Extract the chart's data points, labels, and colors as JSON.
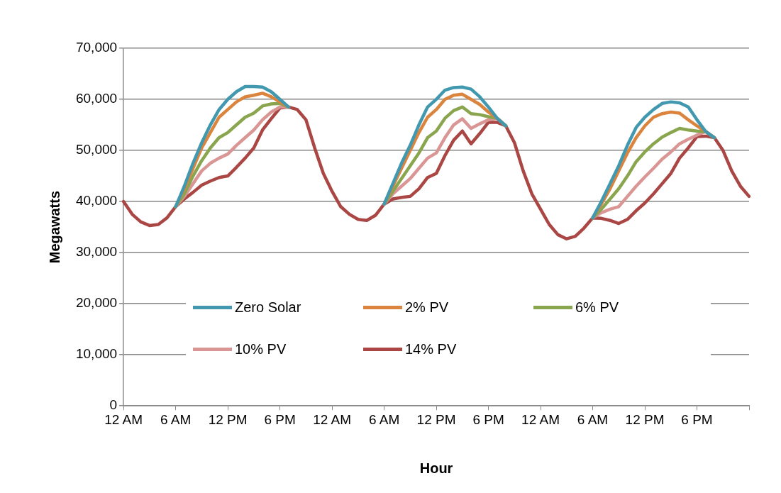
{
  "chart_data": {
    "type": "line",
    "xlabel": "Hour",
    "ylabel": "Megawatts",
    "categories": [
      "12 AM",
      null,
      null,
      null,
      null,
      null,
      "6 AM",
      null,
      null,
      null,
      null,
      null,
      "12 PM",
      null,
      null,
      null,
      null,
      null,
      "6 PM",
      null,
      null,
      null,
      null,
      null,
      "12 AM",
      null,
      null,
      null,
      null,
      null,
      "6 AM",
      null,
      null,
      null,
      null,
      null,
      "12 PM",
      null,
      null,
      null,
      null,
      null,
      "6 PM",
      null,
      null,
      null,
      null,
      null,
      "12 AM",
      null,
      null,
      null,
      null,
      null,
      "6 AM",
      null,
      null,
      null,
      null,
      null,
      "12 PM",
      null,
      null,
      null,
      null,
      null,
      "6 PM",
      null,
      null,
      null,
      null,
      null,
      null
    ],
    "ylim": [
      0,
      70000
    ],
    "yticks": [
      {
        "value": 0,
        "label": "0"
      },
      {
        "value": 10000,
        "label": "10,000"
      },
      {
        "value": 20000,
        "label": "20,000"
      },
      {
        "value": 30000,
        "label": "30,000"
      },
      {
        "value": 40000,
        "label": "40,000"
      },
      {
        "value": 50000,
        "label": "50,000"
      },
      {
        "value": 60000,
        "label": "60,000"
      },
      {
        "value": 70000,
        "label": "70,000"
      }
    ],
    "grid": "y",
    "legend": "bottom",
    "marker": "none",
    "line_style": "solid",
    "series": [
      {
        "name": "Zero Solar",
        "color": "#4198af",
        "values": [
          null,
          null,
          null,
          null,
          null,
          null,
          39000,
          43000,
          47500,
          51500,
          55000,
          58000,
          60000,
          61500,
          62500,
          62500,
          62400,
          61500,
          60000,
          58500,
          null,
          null,
          null,
          null,
          null,
          null,
          null,
          null,
          null,
          null,
          39500,
          43500,
          47500,
          51000,
          55000,
          58500,
          60000,
          61800,
          62300,
          62400,
          62000,
          60500,
          58500,
          56300,
          54800,
          null,
          null,
          null,
          null,
          null,
          null,
          null,
          null,
          null,
          36800,
          40000,
          43500,
          47000,
          51000,
          54500,
          56500,
          58000,
          59200,
          59500,
          59300,
          58500,
          56000,
          53700,
          52500,
          null,
          null,
          null,
          null
        ]
      },
      {
        "name": "2% PV",
        "color": "#db843d",
        "values": [
          null,
          null,
          null,
          null,
          null,
          null,
          39000,
          42500,
          46500,
          50500,
          53500,
          56500,
          58000,
          59500,
          60500,
          60800,
          61200,
          60500,
          59500,
          58500,
          null,
          null,
          null,
          null,
          null,
          null,
          null,
          null,
          null,
          null,
          39500,
          43000,
          46500,
          50000,
          53500,
          56500,
          58000,
          60000,
          60800,
          61000,
          60000,
          59000,
          57500,
          56300,
          54800,
          null,
          null,
          null,
          null,
          null,
          null,
          null,
          null,
          null,
          36800,
          39500,
          42500,
          46000,
          49500,
          52500,
          54800,
          56500,
          57200,
          57500,
          57300,
          56000,
          54800,
          53700,
          52500,
          null,
          null,
          null,
          null
        ]
      },
      {
        "name": "6% PV",
        "color": "#89a54e",
        "values": [
          null,
          null,
          null,
          null,
          null,
          null,
          39000,
          41500,
          45000,
          48000,
          50500,
          52500,
          53500,
          55000,
          56500,
          57300,
          58700,
          59100,
          59200,
          58500,
          null,
          null,
          null,
          null,
          null,
          null,
          null,
          null,
          null,
          null,
          39500,
          42000,
          44500,
          47000,
          49500,
          52500,
          53800,
          56300,
          57800,
          58500,
          57200,
          57000,
          56600,
          56300,
          54800,
          null,
          null,
          null,
          null,
          null,
          null,
          null,
          null,
          null,
          36800,
          38500,
          40500,
          42500,
          45000,
          47800,
          49700,
          51300,
          52600,
          53500,
          54300,
          54000,
          53800,
          53700,
          52500,
          null,
          null,
          null,
          null
        ]
      },
      {
        "name": "10% PV",
        "color": "#d99694",
        "values": [
          null,
          null,
          null,
          null,
          null,
          null,
          39000,
          41000,
          43500,
          46000,
          47500,
          48500,
          49300,
          51000,
          52500,
          54000,
          56000,
          57500,
          58500,
          58500,
          null,
          null,
          null,
          null,
          null,
          null,
          null,
          null,
          null,
          null,
          39500,
          41500,
          43000,
          44500,
          46500,
          48500,
          49500,
          52500,
          55000,
          56200,
          54300,
          55200,
          56000,
          56300,
          54800,
          null,
          null,
          null,
          null,
          null,
          null,
          null,
          null,
          null,
          36800,
          37800,
          38500,
          39000,
          41000,
          43000,
          44800,
          46500,
          48300,
          49700,
          51300,
          52200,
          53000,
          53700,
          52500,
          null,
          null,
          null,
          null
        ]
      },
      {
        "name": "14% PV",
        "color": "#aa4643",
        "values": [
          40000,
          37500,
          36000,
          35300,
          35500,
          36800,
          39000,
          40500,
          41800,
          43200,
          44000,
          44700,
          45000,
          46700,
          48500,
          50500,
          54000,
          56200,
          58300,
          58500,
          58000,
          56000,
          50500,
          45500,
          42000,
          39000,
          37500,
          36500,
          36300,
          37300,
          39500,
          40500,
          40800,
          41000,
          42500,
          44700,
          45500,
          49000,
          52000,
          53800,
          51300,
          53300,
          55500,
          55500,
          54800,
          51500,
          46000,
          41500,
          38500,
          35500,
          33500,
          32700,
          33200,
          34800,
          36800,
          36700,
          36300,
          35700,
          36500,
          38200,
          39700,
          41500,
          43500,
          45500,
          48500,
          50500,
          52700,
          52800,
          52500,
          50000,
          46000,
          43000,
          41000
        ]
      }
    ]
  }
}
